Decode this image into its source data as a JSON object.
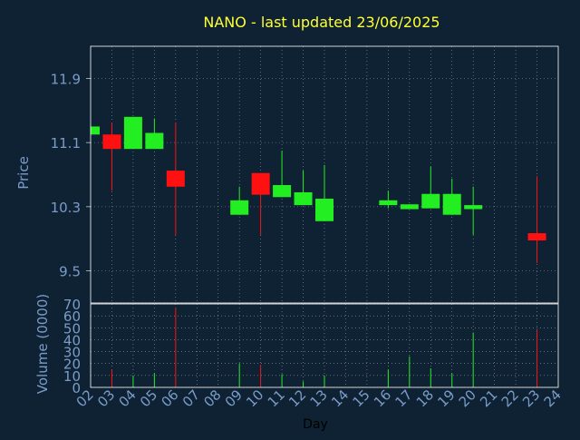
{
  "chart_data": [
    {
      "type": "candlestick",
      "title": "NANO - last updated 23/06/2025",
      "ylabel": "Price",
      "ylim": [
        9.1,
        12.3
      ],
      "yticks": [
        "9.5",
        "10.3",
        "11.1",
        "11.9"
      ],
      "grid": true,
      "categories": [
        "02",
        "03",
        "04",
        "05",
        "06",
        "07",
        "08",
        "09",
        "10",
        "11",
        "12",
        "13",
        "14",
        "15",
        "16",
        "17",
        "18",
        "19",
        "20",
        "21",
        "22",
        "23",
        "24"
      ],
      "candles": [
        {
          "day": "02",
          "open": 11.2,
          "close": 11.3,
          "high": 11.3,
          "low": 11.2,
          "direction": "up"
        },
        {
          "day": "03",
          "open": 11.2,
          "close": 11.02,
          "high": 11.35,
          "low": 10.5,
          "direction": "down"
        },
        {
          "day": "04",
          "open": 11.02,
          "close": 11.42,
          "high": 11.42,
          "low": 11.02,
          "direction": "up"
        },
        {
          "day": "05",
          "open": 11.02,
          "close": 11.22,
          "high": 11.4,
          "low": 11.02,
          "direction": "up"
        },
        {
          "day": "06",
          "open": 10.75,
          "close": 10.55,
          "high": 11.35,
          "low": 9.95,
          "direction": "down"
        },
        {
          "day": "09",
          "open": 10.2,
          "close": 10.38,
          "high": 10.55,
          "low": 10.2,
          "direction": "up"
        },
        {
          "day": "10",
          "open": 10.72,
          "close": 10.45,
          "high": 10.72,
          "low": 9.95,
          "direction": "down"
        },
        {
          "day": "11",
          "open": 10.42,
          "close": 10.57,
          "high": 11.0,
          "low": 10.42,
          "direction": "up"
        },
        {
          "day": "12",
          "open": 10.32,
          "close": 10.48,
          "high": 10.75,
          "low": 10.32,
          "direction": "up"
        },
        {
          "day": "13",
          "open": 10.12,
          "close": 10.4,
          "high": 10.82,
          "low": 10.12,
          "direction": "up"
        },
        {
          "day": "16",
          "open": 10.32,
          "close": 10.38,
          "high": 10.5,
          "low": 10.28,
          "direction": "up"
        },
        {
          "day": "17",
          "open": 10.27,
          "close": 10.33,
          "high": 10.33,
          "low": 10.27,
          "direction": "up"
        },
        {
          "day": "18",
          "open": 10.28,
          "close": 10.46,
          "high": 10.8,
          "low": 10.28,
          "direction": "up"
        },
        {
          "day": "19",
          "open": 10.2,
          "close": 10.46,
          "high": 10.65,
          "low": 10.2,
          "direction": "up"
        },
        {
          "day": "20",
          "open": 10.27,
          "close": 10.32,
          "high": 10.55,
          "low": 9.95,
          "direction": "up"
        },
        {
          "day": "23",
          "open": 9.97,
          "close": 9.88,
          "high": 10.68,
          "low": 9.6,
          "direction": "down"
        }
      ]
    },
    {
      "type": "bar",
      "ylabel": "Volume (0000)",
      "xlabel": "Day",
      "ylim": [
        0,
        70
      ],
      "yticks": [
        "0",
        "10",
        "20",
        "30",
        "40",
        "50",
        "60",
        "70"
      ],
      "grid": true,
      "categories": [
        "02",
        "03",
        "04",
        "05",
        "06",
        "07",
        "08",
        "09",
        "10",
        "11",
        "12",
        "13",
        "14",
        "15",
        "16",
        "17",
        "18",
        "19",
        "20",
        "21",
        "22",
        "23",
        "24"
      ],
      "bars": [
        {
          "day": "03",
          "value": 15,
          "direction": "down"
        },
        {
          "day": "04",
          "value": 10,
          "direction": "up"
        },
        {
          "day": "05",
          "value": 12,
          "direction": "up"
        },
        {
          "day": "06",
          "value": 67,
          "direction": "down"
        },
        {
          "day": "09",
          "value": 20,
          "direction": "up"
        },
        {
          "day": "10",
          "value": 19,
          "direction": "down"
        },
        {
          "day": "11",
          "value": 11,
          "direction": "up"
        },
        {
          "day": "12",
          "value": 5,
          "direction": "up"
        },
        {
          "day": "13",
          "value": 10,
          "direction": "up"
        },
        {
          "day": "16",
          "value": 15,
          "direction": "up"
        },
        {
          "day": "17",
          "value": 26,
          "direction": "up"
        },
        {
          "day": "18",
          "value": 16,
          "direction": "up"
        },
        {
          "day": "19",
          "value": 12,
          "direction": "up"
        },
        {
          "day": "20",
          "value": 46,
          "direction": "up"
        },
        {
          "day": "23",
          "value": 48,
          "direction": "down"
        }
      ]
    }
  ],
  "colors": {
    "background": "#0f2233",
    "title": "#ffff33",
    "axis_text": "#7a9cc9",
    "tick_text": "#7a9cc9",
    "frame": "#ffffff",
    "grid": "#ffffff",
    "up": "#22ee22",
    "down": "#ff1111",
    "xlabel": "#000000"
  }
}
